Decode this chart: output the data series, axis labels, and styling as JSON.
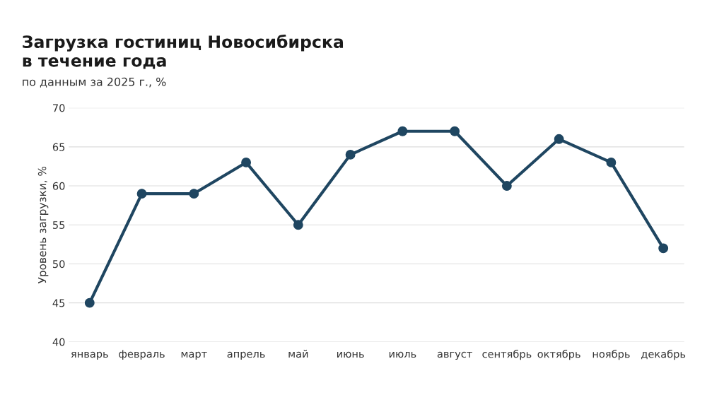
{
  "chart_data": {
    "type": "line",
    "title": "Загрузка гостиниц Новосибирска\nв течение года",
    "subtitle": "по данным за 2025 г., %",
    "ylabel": "Уровень загрузки, %",
    "categories": [
      "январь",
      "февраль",
      "март",
      "апрель",
      "май",
      "июнь",
      "июль",
      "август",
      "сентябрь",
      "октябрь",
      "ноябрь",
      "декабрь"
    ],
    "series": [
      {
        "color": "#1f4661",
        "values": [
          45,
          59,
          59,
          63,
          55,
          64,
          67,
          67,
          60,
          66,
          63,
          52
        ]
      }
    ],
    "ylim": [
      40,
      70
    ],
    "yticks": [
      40,
      45,
      50,
      55,
      60,
      65,
      70
    ],
    "grid": "y",
    "marker": "circle",
    "line_style": "solid"
  }
}
